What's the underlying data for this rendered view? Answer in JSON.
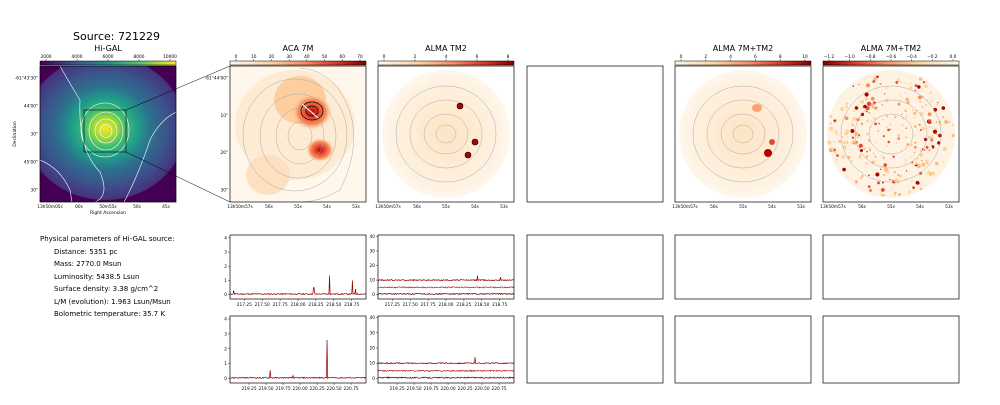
{
  "figure": {
    "title": "Source: 721229",
    "panels": {
      "higal": {
        "title": "Hi-GAL",
        "colorbar_ticks": [
          "2000",
          "4000",
          "6000",
          "8000",
          "10000"
        ],
        "ytick_labels": [
          "-61°43'30\"",
          "44'00\"",
          "30\"",
          "45'00\"",
          "30\""
        ],
        "xtick_labels": [
          "13h50m05s",
          "00s",
          "50m55s",
          "50s",
          "45s"
        ],
        "xlabel": "Right Ascension",
        "ylabel": "Declination"
      },
      "aca": {
        "title": "ACA 7M",
        "colorbar_ticks": [
          "0",
          "10",
          "20",
          "30",
          "40",
          "50",
          "60",
          "70"
        ],
        "ytick_labels": [
          "-61°44'00\"",
          "10\"",
          "20\"",
          "30\""
        ],
        "xtick_labels": [
          "13h50m57s",
          "56s",
          "55s",
          "54s",
          "53s"
        ]
      },
      "tm2": {
        "title": "ALMA TM2",
        "colorbar_ticks": [
          "0",
          "2",
          "4",
          "6",
          "8"
        ],
        "xtick_labels": [
          "13h50m57s",
          "56s",
          "55s",
          "54s",
          "53s"
        ]
      },
      "combo": {
        "title": "ALMA 7M+TM2",
        "colorbar_ticks": [
          "0",
          "2",
          "4",
          "6",
          "8",
          "10"
        ],
        "xtick_labels": [
          "13h50m57s",
          "56s",
          "55s",
          "54s",
          "53s"
        ]
      },
      "diff": {
        "title": "ALMA 7M+TM2",
        "colorbar_ticks": [
          "−1.2",
          "−1.0",
          "−0.8",
          "−0.6",
          "−0.4",
          "−0.2",
          "0.0"
        ],
        "xtick_labels": [
          "13h50m57s",
          "56s",
          "55s",
          "54s",
          "53s"
        ]
      }
    },
    "physical_params": {
      "header": "Physical parameters of Hi-GAL source:",
      "distance": "Distance: 5351 pc",
      "mass": "Mass: 2770.0 Msun",
      "luminosity": "Luminosity: 5438.5 Lsun",
      "surface_density": "Surface density: 3.38 g/cm^2",
      "lm": "L/M (evolution): 1.963 Lsun/Msun",
      "tbol": "Bolometric temperature: 35.7 K"
    }
  },
  "chart_data": [
    {
      "type": "line",
      "panel": "spectrum-aca-upper",
      "x_range": [
        217.05,
        218.95
      ],
      "ylim": [
        -0.3,
        4.2
      ],
      "yticks": [
        "0",
        "1",
        "2",
        "3",
        "4"
      ],
      "xticks": [
        "217.25",
        "217.50",
        "217.75",
        "218.00",
        "218.25",
        "218.50",
        "218.75"
      ],
      "baseline": 0.05,
      "peaks": [
        {
          "x": 217.1,
          "y": 0.3
        },
        {
          "x": 218.22,
          "y": 0.5
        },
        {
          "x": 218.44,
          "y": 1.35
        },
        {
          "x": 218.76,
          "y": 1.0
        },
        {
          "x": 218.8,
          "y": 0.4
        }
      ]
    },
    {
      "type": "line",
      "panel": "spectrum-tm2-upper",
      "x_range": [
        217.05,
        218.95
      ],
      "ylim": [
        -3,
        41
      ],
      "yticks": [
        "0",
        "10",
        "20",
        "30",
        "40"
      ],
      "xticks": [
        "217.25",
        "217.50",
        "217.75",
        "218.00",
        "218.25",
        "218.50",
        "218.75"
      ],
      "series_levels": [
        10,
        5,
        0.5
      ],
      "peaks": [
        {
          "x": 218.44,
          "y": 3
        },
        {
          "x": 218.76,
          "y": 2
        }
      ]
    },
    {
      "type": "line",
      "panel": "spectrum-aca-lower",
      "x_range": [
        218.97,
        220.97
      ],
      "ylim": [
        -0.3,
        4.2
      ],
      "yticks": [
        "0",
        "1",
        "2",
        "3",
        "4"
      ],
      "xticks": [
        "219.25",
        "219.50",
        "219.75",
        "220.00",
        "220.25",
        "220.50",
        "220.75"
      ],
      "baseline": 0.05,
      "peaks": [
        {
          "x": 219.56,
          "y": 0.55
        },
        {
          "x": 219.9,
          "y": 0.2
        },
        {
          "x": 220.4,
          "y": 2.6
        }
      ]
    },
    {
      "type": "line",
      "panel": "spectrum-tm2-lower",
      "x_range": [
        218.97,
        220.97
      ],
      "ylim": [
        -3,
        41
      ],
      "yticks": [
        "0",
        "10",
        "20",
        "30",
        "40"
      ],
      "xticks": [
        "219.25",
        "219.50",
        "219.75",
        "220.00",
        "220.25",
        "220.50",
        "220.75"
      ],
      "series_levels": [
        10,
        5,
        0.5
      ],
      "peaks": [
        {
          "x": 220.4,
          "y": 4
        }
      ]
    }
  ]
}
